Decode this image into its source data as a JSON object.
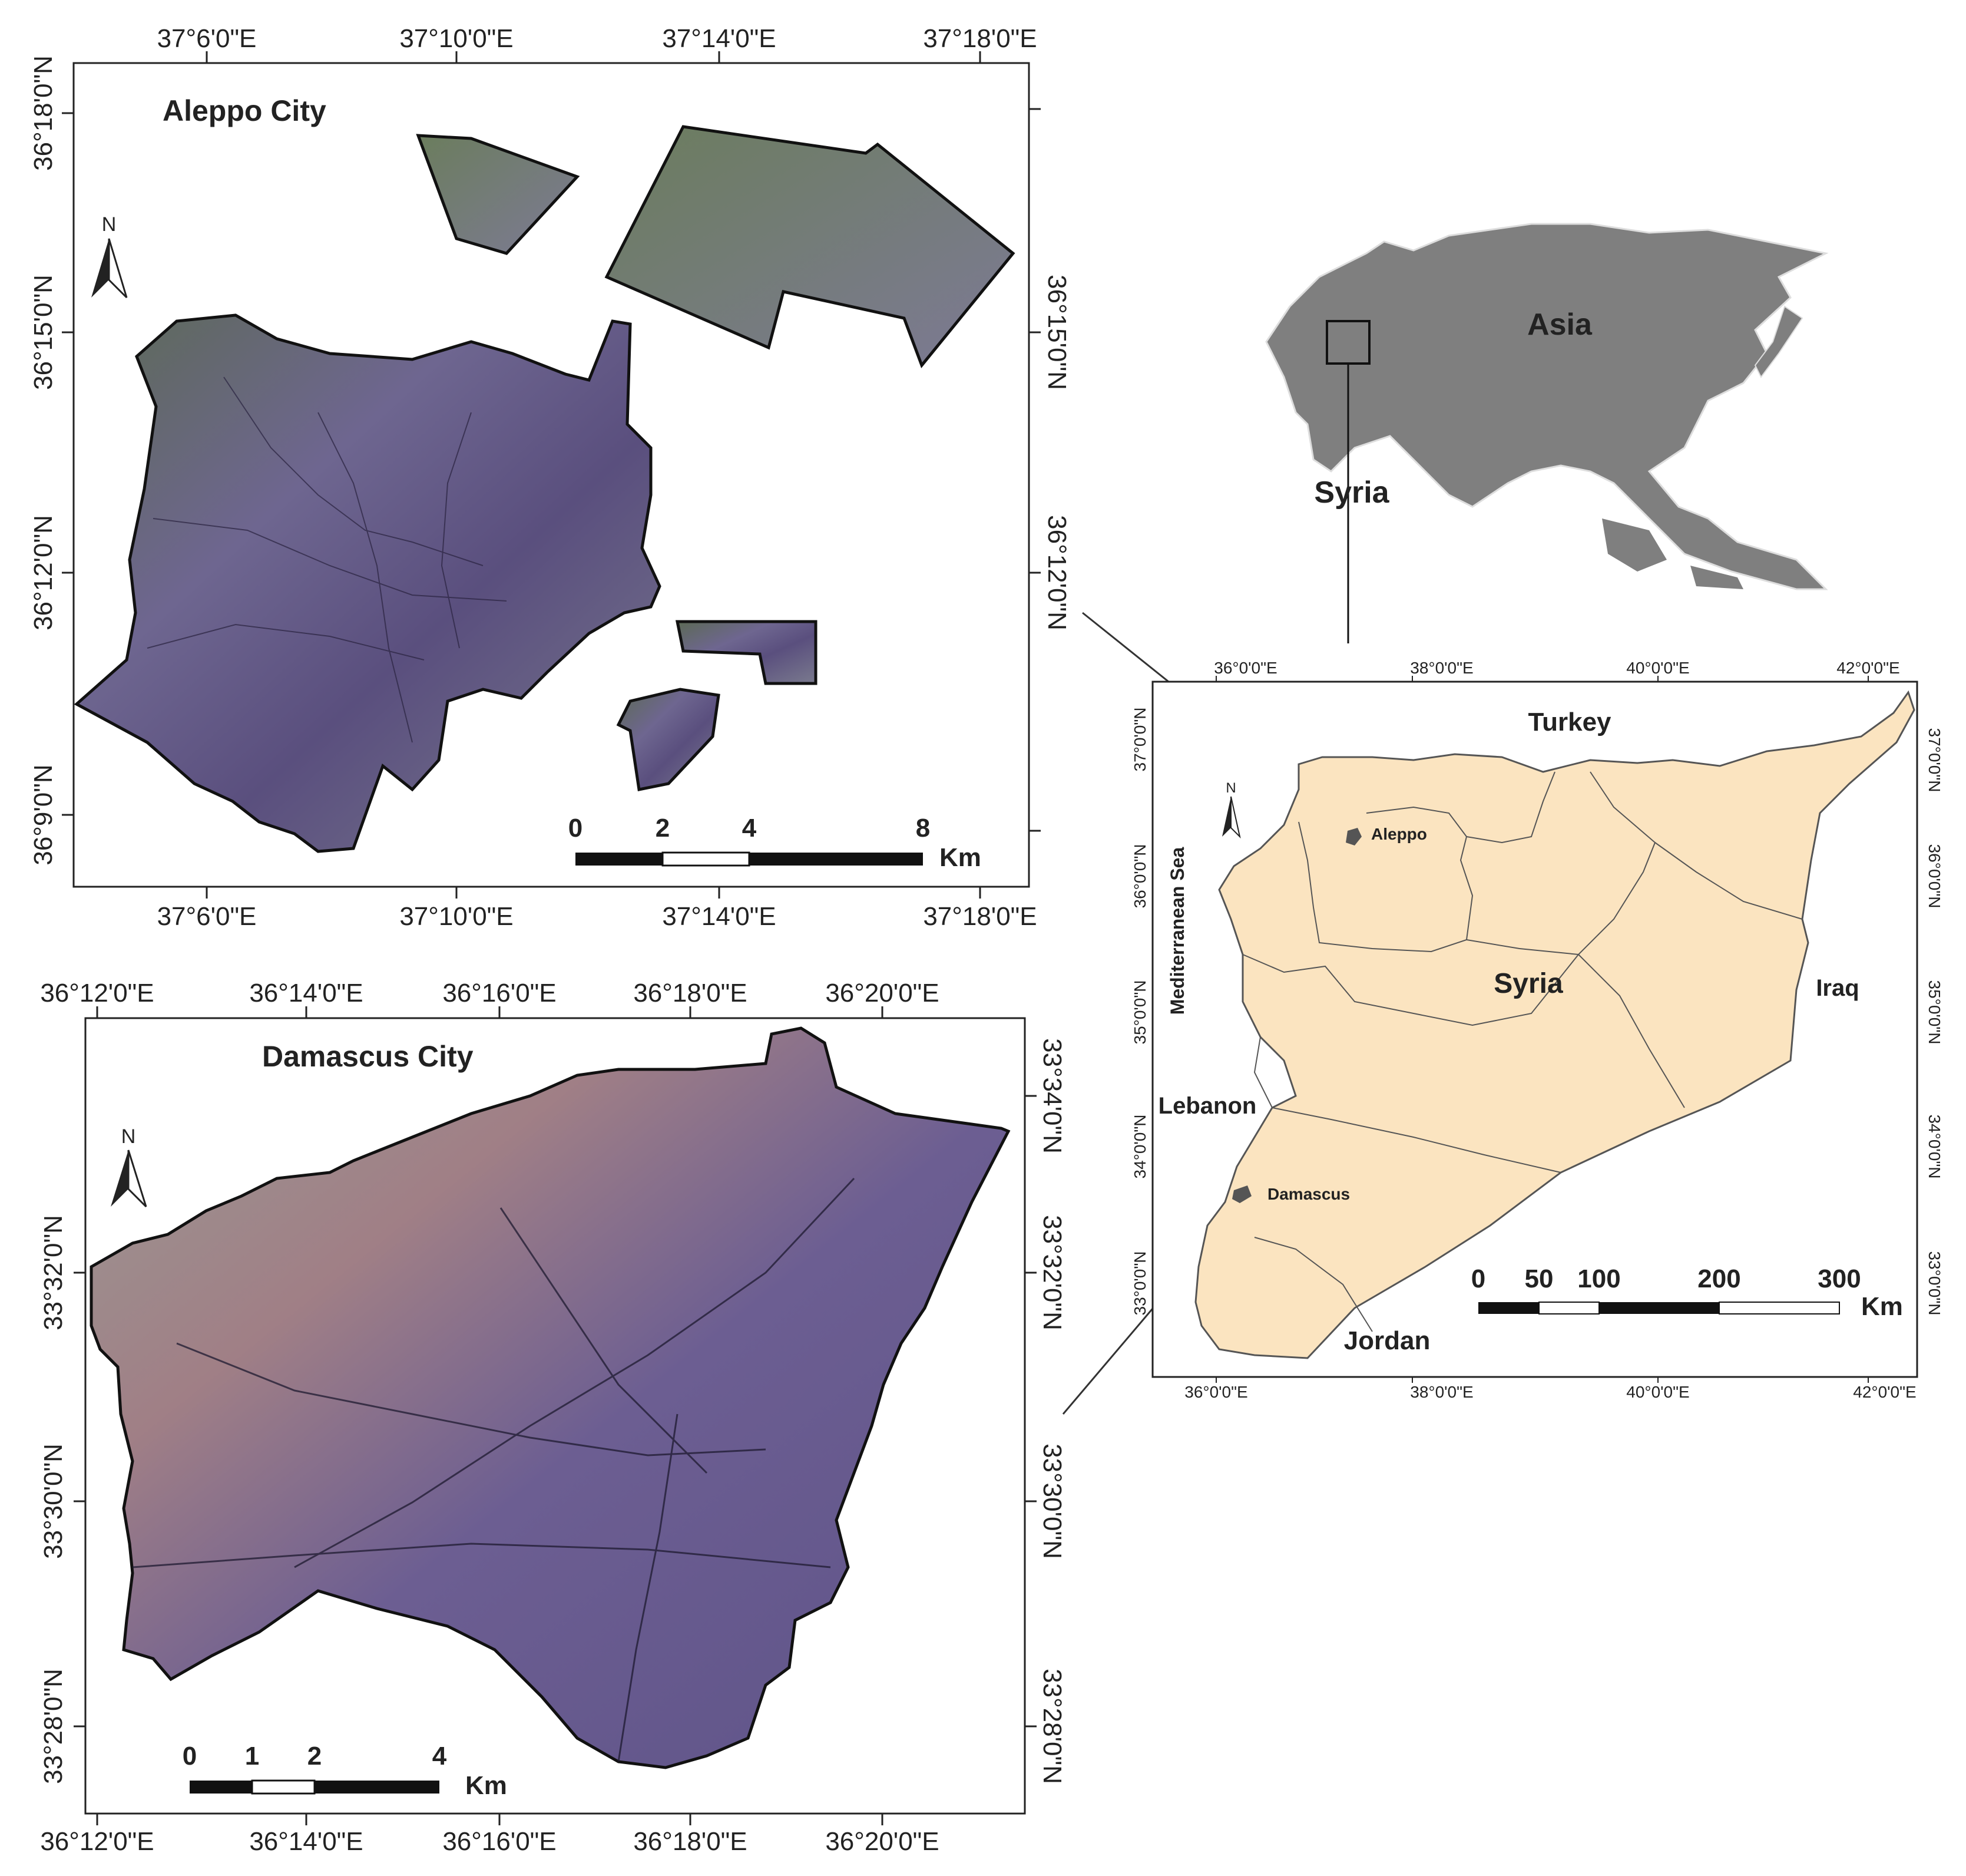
{
  "aleppo_map": {
    "title": "Aleppo City",
    "north_label": "N",
    "lon_labels": [
      "37°6'0\"E",
      "37°10'0\"E",
      "37°14'0\"E",
      "37°18'0\"E"
    ],
    "lat_labels": [
      "36°18'0\"N",
      "36°15'0\"N",
      "36°12'0\"N",
      "36°9'0\"N"
    ],
    "scale_ticks": [
      "0",
      "2",
      "4",
      "8"
    ],
    "scale_unit": "Km"
  },
  "damascus_map": {
    "title": "Damascus City",
    "north_label": "N",
    "lon_labels": [
      "36°12'0\"E",
      "36°14'0\"E",
      "36°16'0\"E",
      "36°18'0\"E",
      "36°20'0\"E"
    ],
    "lat_labels": [
      "33°34'0\"N",
      "33°32'0\"N",
      "33°30'0\"N",
      "33°28'0\"N"
    ],
    "scale_ticks": [
      "0",
      "1",
      "2",
      "4"
    ],
    "scale_unit": "Km"
  },
  "asia_inset": {
    "continent_label": "Asia",
    "country_label": "Syria"
  },
  "syria_map": {
    "north_label": "N",
    "lon_labels": [
      "36°0'0\"E",
      "38°0'0\"E",
      "40°0'0\"E",
      "42°0'0\"E"
    ],
    "lat_labels": [
      "37°0'0\"N",
      "36°0'0\"N",
      "35°0'0\"N",
      "34°0'0\"N",
      "33°0'0\"N"
    ],
    "labels": {
      "turkey": "Turkey",
      "mediterranean": "Mediterranean Sea",
      "aleppo": "Aleppo",
      "syria": "Syria",
      "iraq": "Iraq",
      "lebanon": "Lebanon",
      "damascus": "Damascus",
      "jordan": "Jordan"
    },
    "scale_ticks": [
      "0",
      "50",
      "100",
      "200",
      "300"
    ],
    "scale_unit": "Km"
  },
  "colors": {
    "syria_fill": "#fbe4c0",
    "asia_fill": "#7f7f7f",
    "urban_purple": "#6f6590",
    "vegetation_green": "#4f8a3a"
  }
}
